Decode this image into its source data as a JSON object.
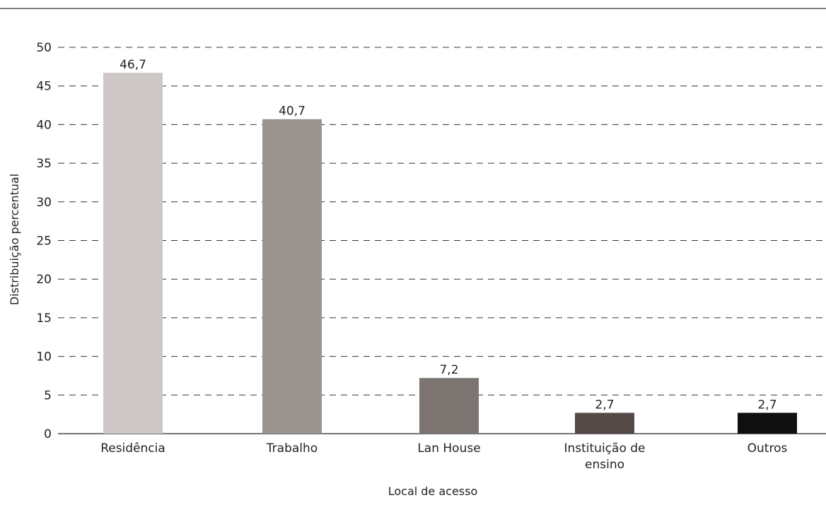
{
  "chart_data": {
    "type": "bar",
    "title": "",
    "xlabel": "Local de acesso",
    "ylabel": "Distribuição percentual",
    "ylim": [
      0,
      50
    ],
    "ytick_step": 5,
    "grid": "horizontal dashed",
    "categories": [
      "Residência",
      "Trabalho",
      "Lan House",
      "Instituição de ensino",
      "Outros"
    ],
    "category_label_lines": [
      [
        "Residência"
      ],
      [
        "Trabalho"
      ],
      [
        "Lan House"
      ],
      [
        "Instituição de",
        "ensino"
      ],
      [
        "Outros"
      ]
    ],
    "values": [
      46.7,
      40.7,
      7.2,
      2.7,
      2.7
    ],
    "value_labels": [
      "46,7",
      "40,7",
      "7,2",
      "2,7",
      "2,7"
    ],
    "colors": [
      "#cdc8c7",
      "#9a9490",
      "#7b7471",
      "#544b49",
      "#0f0f0f"
    ]
  }
}
